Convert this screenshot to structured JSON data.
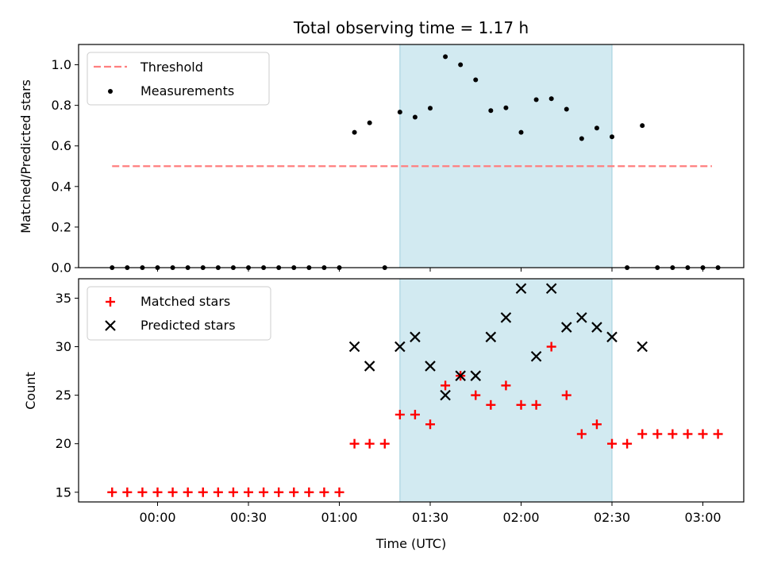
{
  "chart_data": {
    "type": "scatter",
    "title": "Total observing time = 1.17 h",
    "xlabel": "Time (UTC)",
    "x_ticks": [
      "00:00",
      "00:30",
      "01:00",
      "01:30",
      "02:00",
      "02:30",
      "03:00"
    ],
    "shaded_span": [
      "01:20",
      "02:30"
    ],
    "colors": {
      "threshold": "#ff7f7f",
      "measurements": "#000000",
      "matched": "#ff0000",
      "predicted": "#000000",
      "span": "#add8e6"
    },
    "top_panel": {
      "ylabel": "Matched/Predicted stars",
      "ylim": [
        0,
        1.1
      ],
      "y_ticks": [
        "0.0",
        "0.2",
        "0.4",
        "0.6",
        "0.8",
        "1.0"
      ],
      "threshold": {
        "name": "Threshold",
        "value": 0.5,
        "x_range": [
          "23:45",
          "03:03"
        ]
      },
      "measurements": {
        "name": "Measurements",
        "points": [
          [
            "23:45",
            0
          ],
          [
            "23:50",
            0
          ],
          [
            "23:55",
            0
          ],
          [
            "00:00",
            0
          ],
          [
            "00:05",
            0
          ],
          [
            "00:10",
            0
          ],
          [
            "00:15",
            0
          ],
          [
            "00:20",
            0
          ],
          [
            "00:25",
            0
          ],
          [
            "00:30",
            0
          ],
          [
            "00:35",
            0
          ],
          [
            "00:40",
            0
          ],
          [
            "00:45",
            0
          ],
          [
            "00:50",
            0
          ],
          [
            "00:55",
            0
          ],
          [
            "01:00",
            0
          ],
          [
            "01:15",
            0
          ],
          [
            "01:05",
            0.667
          ],
          [
            "01:10",
            0.714
          ],
          [
            "01:20",
            0.767
          ],
          [
            "01:25",
            0.742
          ],
          [
            "01:30",
            0.786
          ],
          [
            "01:35",
            1.04
          ],
          [
            "01:40",
            1.0
          ],
          [
            "01:45",
            0.926
          ],
          [
            "01:50",
            0.774
          ],
          [
            "01:55",
            0.788
          ],
          [
            "02:00",
            0.667
          ],
          [
            "02:05",
            0.828
          ],
          [
            "02:10",
            0.833
          ],
          [
            "02:15",
            0.781
          ],
          [
            "02:20",
            0.636
          ],
          [
            "02:25",
            0.688
          ],
          [
            "02:30",
            0.645
          ],
          [
            "02:35",
            0
          ],
          [
            "02:40",
            0.7
          ],
          [
            "02:45",
            0
          ],
          [
            "02:50",
            0
          ],
          [
            "02:55",
            0
          ],
          [
            "03:00",
            0
          ],
          [
            "03:05",
            0
          ]
        ]
      }
    },
    "bottom_panel": {
      "ylabel": "Count",
      "ylim": [
        14,
        37
      ],
      "y_ticks": [
        "15",
        "20",
        "25",
        "30",
        "35"
      ],
      "series": [
        {
          "name": "Matched stars",
          "points": [
            [
              "23:45",
              15
            ],
            [
              "23:50",
              15
            ],
            [
              "23:55",
              15
            ],
            [
              "00:00",
              15
            ],
            [
              "00:05",
              15
            ],
            [
              "00:10",
              15
            ],
            [
              "00:15",
              15
            ],
            [
              "00:20",
              15
            ],
            [
              "00:25",
              15
            ],
            [
              "00:30",
              15
            ],
            [
              "00:35",
              15
            ],
            [
              "00:40",
              15
            ],
            [
              "00:45",
              15
            ],
            [
              "00:50",
              15
            ],
            [
              "00:55",
              15
            ],
            [
              "01:00",
              15
            ],
            [
              "01:05",
              20
            ],
            [
              "01:10",
              20
            ],
            [
              "01:15",
              20
            ],
            [
              "01:20",
              23
            ],
            [
              "01:25",
              23
            ],
            [
              "01:30",
              22
            ],
            [
              "01:35",
              26
            ],
            [
              "01:40",
              27
            ],
            [
              "01:45",
              25
            ],
            [
              "01:50",
              24
            ],
            [
              "01:55",
              26
            ],
            [
              "02:00",
              24
            ],
            [
              "02:05",
              24
            ],
            [
              "02:10",
              30
            ],
            [
              "02:15",
              25
            ],
            [
              "02:20",
              21
            ],
            [
              "02:25",
              22
            ],
            [
              "02:30",
              20
            ],
            [
              "02:35",
              20
            ],
            [
              "02:40",
              21
            ],
            [
              "02:45",
              21
            ],
            [
              "02:50",
              21
            ],
            [
              "02:55",
              21
            ],
            [
              "03:00",
              21
            ],
            [
              "03:05",
              21
            ]
          ]
        },
        {
          "name": "Predicted stars",
          "points": [
            [
              "01:05",
              30
            ],
            [
              "01:10",
              28
            ],
            [
              "01:20",
              30
            ],
            [
              "01:25",
              31
            ],
            [
              "01:30",
              28
            ],
            [
              "01:35",
              25
            ],
            [
              "01:40",
              27
            ],
            [
              "01:45",
              27
            ],
            [
              "01:50",
              31
            ],
            [
              "01:55",
              33
            ],
            [
              "02:00",
              36
            ],
            [
              "02:05",
              29
            ],
            [
              "02:10",
              36
            ],
            [
              "02:15",
              32
            ],
            [
              "02:20",
              33
            ],
            [
              "02:25",
              32
            ],
            [
              "02:30",
              31
            ],
            [
              "02:40",
              30
            ]
          ]
        }
      ]
    }
  }
}
